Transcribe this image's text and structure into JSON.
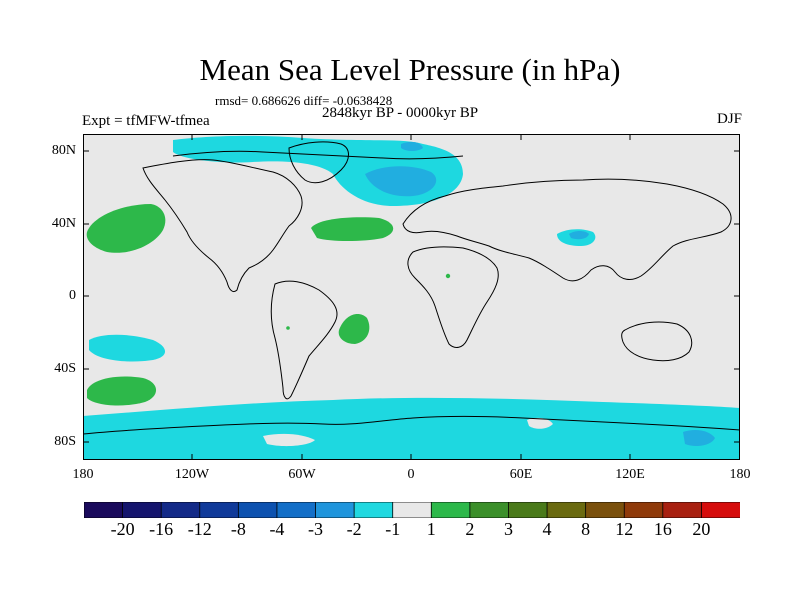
{
  "header": {
    "title": "Mean Sea Level Pressure (in hPa)",
    "stats": "rmsd= 0.686626 diff= -0.0638428",
    "period": "2848kyr BP - 0000kyr BP",
    "experiment": "Expt = tfMFW-tfmea",
    "season": "DJF"
  },
  "map": {
    "y_ticks": [
      "80N",
      "40N",
      "0",
      "40S",
      "80S"
    ],
    "x_ticks": [
      "180",
      "120W",
      "60W",
      "0",
      "60E",
      "120E",
      "180"
    ],
    "colors": {
      "background": "#e8e8e8",
      "land_outline": "#000000",
      "neg_light": "#1ed8e0",
      "neg_mid": "#21aee0",
      "neg_dark": "#1f8ad0",
      "pos_light": "#2db84a"
    }
  },
  "colorbar": {
    "labels": [
      "-20",
      "-16",
      "-12",
      "-8",
      "-4",
      "-3",
      "-2",
      "-1",
      "1",
      "2",
      "3",
      "4",
      "8",
      "12",
      "16",
      "20"
    ],
    "colors": [
      "#1a0a5c",
      "#15156e",
      "#132a88",
      "#103a9a",
      "#0d52b0",
      "#136fc8",
      "#1f95dc",
      "#20d8e0",
      "#e8e8e8",
      "#2cb84a",
      "#3b8f2a",
      "#4a7a1a",
      "#6a6a10",
      "#7a500c",
      "#8f3a0a",
      "#a82010",
      "#d60c0c"
    ]
  }
}
